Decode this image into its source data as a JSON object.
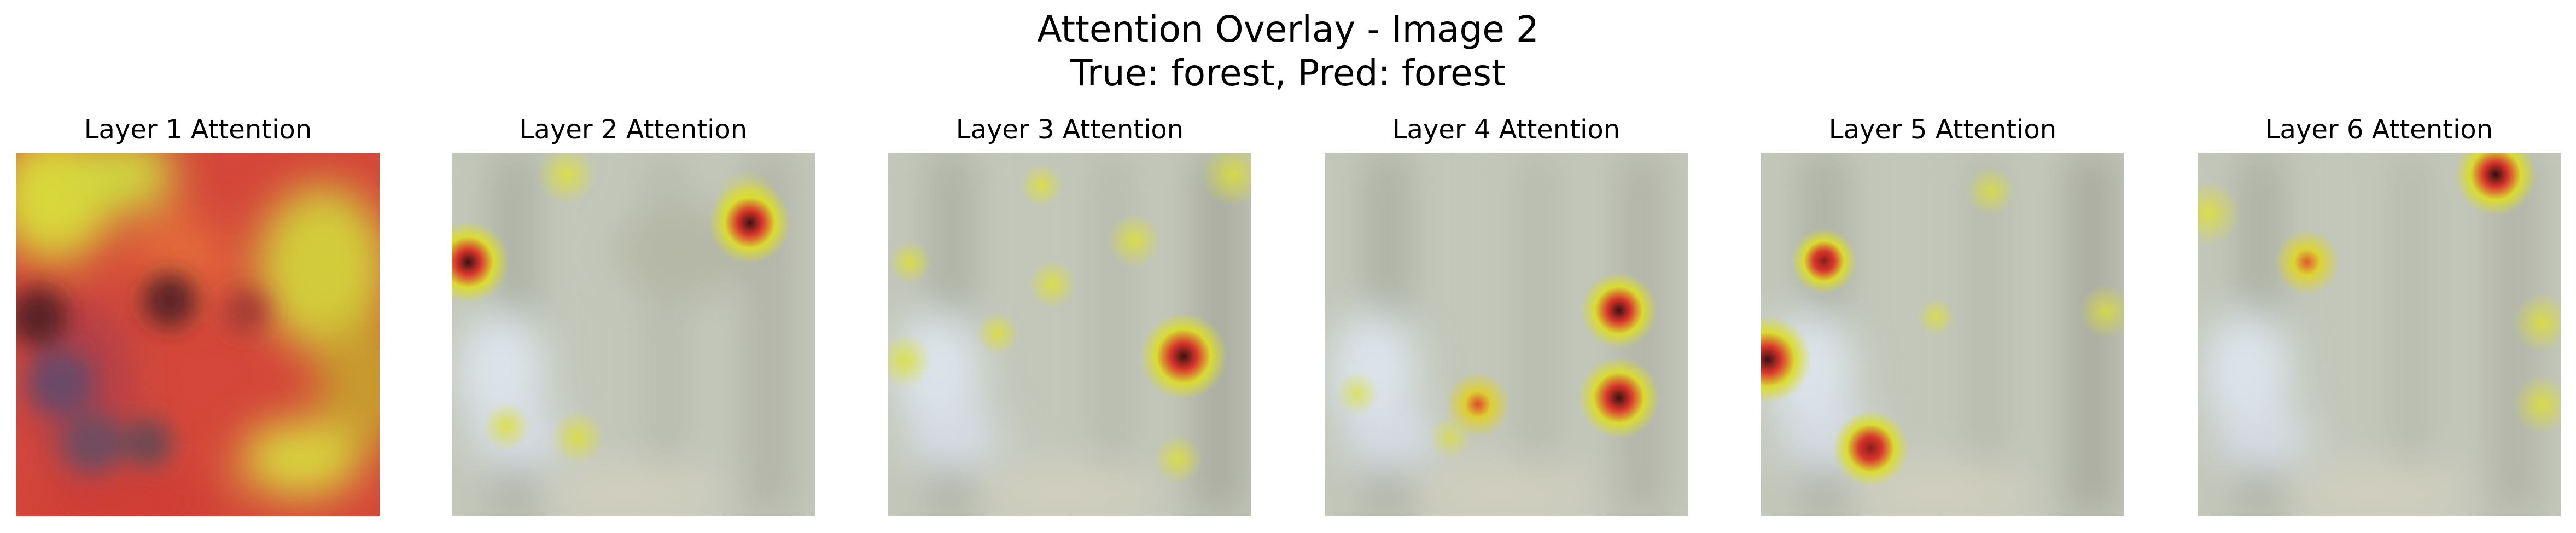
{
  "figure": {
    "title_line1": "Attention Overlay - Image 2",
    "title_line2": "True: forest, Pred: forest"
  },
  "panels": [
    {
      "title": "Layer 1 Attention"
    },
    {
      "title": "Layer 2 Attention"
    },
    {
      "title": "Layer 3 Attention"
    },
    {
      "title": "Layer 4 Attention"
    },
    {
      "title": "Layer 5 Attention"
    },
    {
      "title": "Layer 6 Attention"
    }
  ],
  "colors": {
    "background_forest": "#c3c7ba",
    "attention_low": "#d6dc2a",
    "attention_mid": "#e0322a",
    "attention_high": "#3a1210",
    "layer1_base": "#d4473a"
  }
}
